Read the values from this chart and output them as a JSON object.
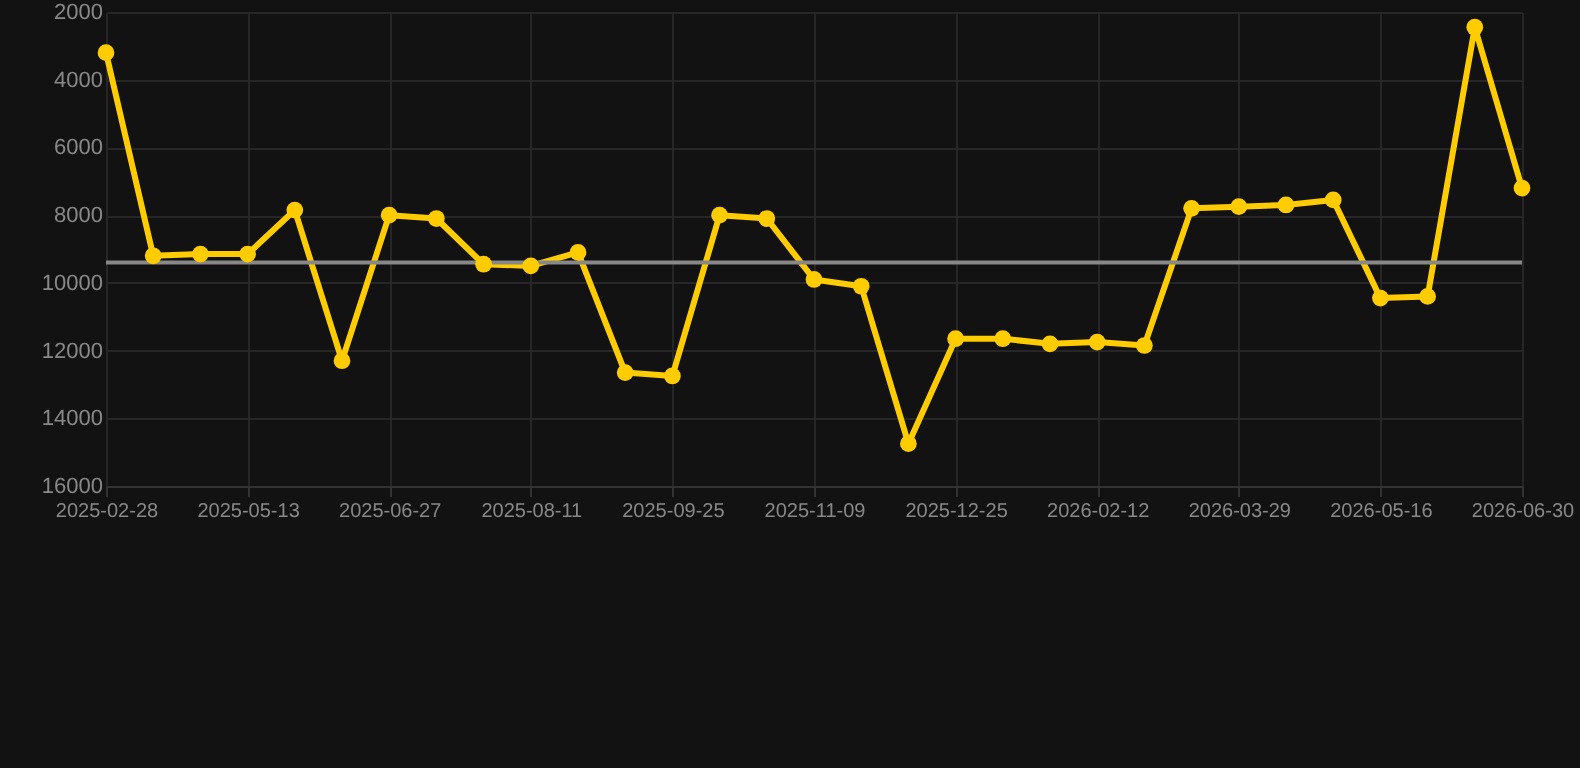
{
  "chart_data": {
    "type": "line",
    "categories": [
      "2025-02-28",
      null,
      null,
      "2025-05-13",
      null,
      null,
      "2025-06-27",
      null,
      null,
      "2025-08-11",
      null,
      null,
      "2025-09-25",
      null,
      null,
      "2025-11-09",
      null,
      null,
      "2025-12-25",
      null,
      null,
      "2026-02-12",
      null,
      null,
      "2026-03-29",
      null,
      null,
      "2026-05-16",
      null,
      null,
      "2026-06-30"
    ],
    "series": [
      {
        "color": "#ffcc00",
        "values": [
          3200,
          9200,
          9150,
          9150,
          7850,
          12300,
          8000,
          8100,
          9450,
          9500,
          9100,
          12650,
          12750,
          8000,
          8100,
          9900,
          10100,
          14750,
          11650,
          11650,
          11800,
          11750,
          11850,
          7800,
          7750,
          7700,
          7550,
          10450,
          10400,
          2450,
          7200
        ]
      }
    ],
    "ylim": [
      16000,
      2000
    ],
    "yticks": [
      2000,
      4000,
      6000,
      8000,
      10000,
      12000,
      14000,
      16000
    ],
    "ref_lines": [
      {
        "axis": "y",
        "value": 9400,
        "color": "#888888"
      }
    ],
    "grid": true,
    "marker": "circle",
    "line_style": "solid"
  }
}
